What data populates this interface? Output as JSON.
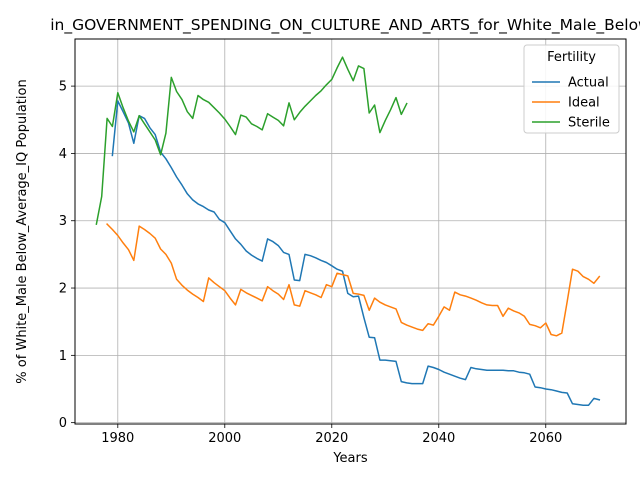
{
  "chart_data": {
    "type": "line",
    "title": "in_GOVERNMENT_SPENDING_ON_CULTURE_AND_ARTS_for_White_Male_Below",
    "xlabel": "Years",
    "ylabel": "% of White_Male Below_Average_IQ Population",
    "xlim": [
      1972,
      2075
    ],
    "ylim": [
      -0.02,
      5.7
    ],
    "xticks": [
      1980,
      2000,
      2020,
      2040,
      2060
    ],
    "yticks": [
      0,
      1,
      2,
      3,
      4,
      5
    ],
    "grid": true,
    "legend": {
      "title": "Fertility",
      "placement": "top-right"
    },
    "series": [
      {
        "name": "Actual",
        "color": "#1f77b4",
        "x": [
          1979,
          1980,
          1981,
          1982,
          1983,
          1984,
          1985,
          1986,
          1987,
          1988,
          1989,
          1990,
          1991,
          1992,
          1993,
          1994,
          1995,
          1996,
          1997,
          1998,
          1999,
          2000,
          2001,
          2002,
          2003,
          2004,
          2005,
          2006,
          2007,
          2008,
          2009,
          2010,
          2011,
          2012,
          2013,
          2014,
          2015,
          2016,
          2017,
          2018,
          2019,
          2020,
          2021,
          2022,
          2023,
          2024,
          2025,
          2026,
          2027,
          2028,
          2029,
          2030,
          2031,
          2032,
          2033,
          2034,
          2035,
          2036,
          2037,
          2038,
          2039,
          2040,
          2041,
          2042,
          2043,
          2044,
          2045,
          2046,
          2047,
          2048,
          2049,
          2050,
          2051,
          2052,
          2053,
          2054,
          2055,
          2056,
          2057,
          2058,
          2059,
          2060,
          2061,
          2062,
          2063,
          2064,
          2065,
          2066,
          2067,
          2068,
          2069,
          2070
        ],
        "values": [
          3.97,
          4.78,
          4.62,
          4.45,
          4.15,
          4.56,
          4.52,
          4.38,
          4.28,
          4.02,
          3.92,
          3.79,
          3.65,
          3.53,
          3.4,
          3.31,
          3.25,
          3.21,
          3.16,
          3.13,
          3.02,
          2.97,
          2.85,
          2.73,
          2.65,
          2.55,
          2.49,
          2.44,
          2.4,
          2.73,
          2.69,
          2.63,
          2.53,
          2.5,
          2.12,
          2.11,
          2.5,
          2.48,
          2.45,
          2.41,
          2.38,
          2.33,
          2.28,
          2.25,
          1.92,
          1.87,
          1.88,
          1.56,
          1.27,
          1.26,
          0.93,
          0.93,
          0.92,
          0.91,
          0.61,
          0.59,
          0.58,
          0.58,
          0.58,
          0.84,
          0.82,
          0.79,
          0.75,
          0.72,
          0.69,
          0.66,
          0.64,
          0.82,
          0.8,
          0.79,
          0.78,
          0.78,
          0.78,
          0.78,
          0.77,
          0.77,
          0.75,
          0.74,
          0.72,
          0.53,
          0.52,
          0.5,
          0.49,
          0.47,
          0.45,
          0.44,
          0.28,
          0.27,
          0.26,
          0.26,
          0.36,
          0.34
        ]
      },
      {
        "name": "Ideal",
        "color": "#ff7f0e",
        "x": [
          1978,
          1979,
          1980,
          1981,
          1982,
          1983,
          1984,
          1985,
          1986,
          1987,
          1988,
          1989,
          1990,
          1991,
          1992,
          1993,
          1994,
          1995,
          1996,
          1997,
          1998,
          1999,
          2000,
          2001,
          2002,
          2003,
          2004,
          2005,
          2006,
          2007,
          2008,
          2009,
          2010,
          2011,
          2012,
          2013,
          2014,
          2015,
          2016,
          2017,
          2018,
          2019,
          2020,
          2021,
          2022,
          2023,
          2024,
          2025,
          2026,
          2027,
          2028,
          2029,
          2030,
          2031,
          2032,
          2033,
          2034,
          2035,
          2036,
          2037,
          2038,
          2039,
          2040,
          2041,
          2042,
          2043,
          2044,
          2045,
          2046,
          2047,
          2048,
          2049,
          2050,
          2051,
          2052,
          2053,
          2054,
          2055,
          2056,
          2057,
          2058,
          2059,
          2060,
          2061,
          2062,
          2063,
          2064,
          2065,
          2066,
          2067,
          2068,
          2069,
          2070
        ],
        "values": [
          2.95,
          2.87,
          2.78,
          2.67,
          2.57,
          2.41,
          2.92,
          2.87,
          2.81,
          2.74,
          2.58,
          2.5,
          2.37,
          2.13,
          2.04,
          1.97,
          1.91,
          1.86,
          1.8,
          2.15,
          2.08,
          2.02,
          1.96,
          1.85,
          1.75,
          1.98,
          1.93,
          1.89,
          1.85,
          1.81,
          2.02,
          1.96,
          1.91,
          1.83,
          2.05,
          1.75,
          1.73,
          1.96,
          1.93,
          1.9,
          1.86,
          2.05,
          2.02,
          2.22,
          2.2,
          2.18,
          1.92,
          1.91,
          1.89,
          1.67,
          1.85,
          1.79,
          1.75,
          1.72,
          1.69,
          1.49,
          1.45,
          1.42,
          1.39,
          1.37,
          1.47,
          1.45,
          1.58,
          1.72,
          1.67,
          1.94,
          1.9,
          1.88,
          1.85,
          1.82,
          1.78,
          1.75,
          1.74,
          1.74,
          1.58,
          1.7,
          1.66,
          1.63,
          1.58,
          1.46,
          1.44,
          1.41,
          1.48,
          1.31,
          1.29,
          1.33,
          1.8,
          2.28,
          2.25,
          2.17,
          2.13,
          2.07,
          2.17
        ]
      },
      {
        "name": "Sterile",
        "color": "#2ca02c",
        "x": [
          1976,
          1977,
          1978,
          1979,
          1980,
          1981,
          1982,
          1983,
          1984,
          1985,
          1986,
          1987,
          1988,
          1989,
          1990,
          1991,
          1992,
          1993,
          1994,
          1995,
          1996,
          1997,
          1998,
          1999,
          2000,
          2001,
          2002,
          2003,
          2004,
          2005,
          2006,
          2007,
          2008,
          2009,
          2010,
          2011,
          2012,
          2013,
          2014,
          2015,
          2016,
          2017,
          2018,
          2019,
          2020,
          2021,
          2022,
          2023,
          2024,
          2025,
          2026,
          2027,
          2028,
          2029,
          2030,
          2031,
          2032,
          2033,
          2034
        ],
        "values": [
          2.95,
          3.36,
          4.52,
          4.4,
          4.9,
          4.68,
          4.48,
          4.32,
          4.56,
          4.44,
          4.32,
          4.2,
          3.98,
          4.3,
          5.13,
          4.92,
          4.8,
          4.62,
          4.52,
          4.86,
          4.8,
          4.76,
          4.68,
          4.6,
          4.51,
          4.4,
          4.28,
          4.57,
          4.54,
          4.44,
          4.4,
          4.35,
          4.59,
          4.54,
          4.49,
          4.41,
          4.75,
          4.5,
          4.61,
          4.7,
          4.78,
          4.86,
          4.93,
          5.02,
          5.1,
          5.27,
          5.43,
          5.25,
          5.08,
          5.3,
          5.26,
          4.6,
          4.72,
          4.31,
          4.49,
          4.65,
          4.83,
          4.58,
          4.74
        ]
      }
    ]
  }
}
